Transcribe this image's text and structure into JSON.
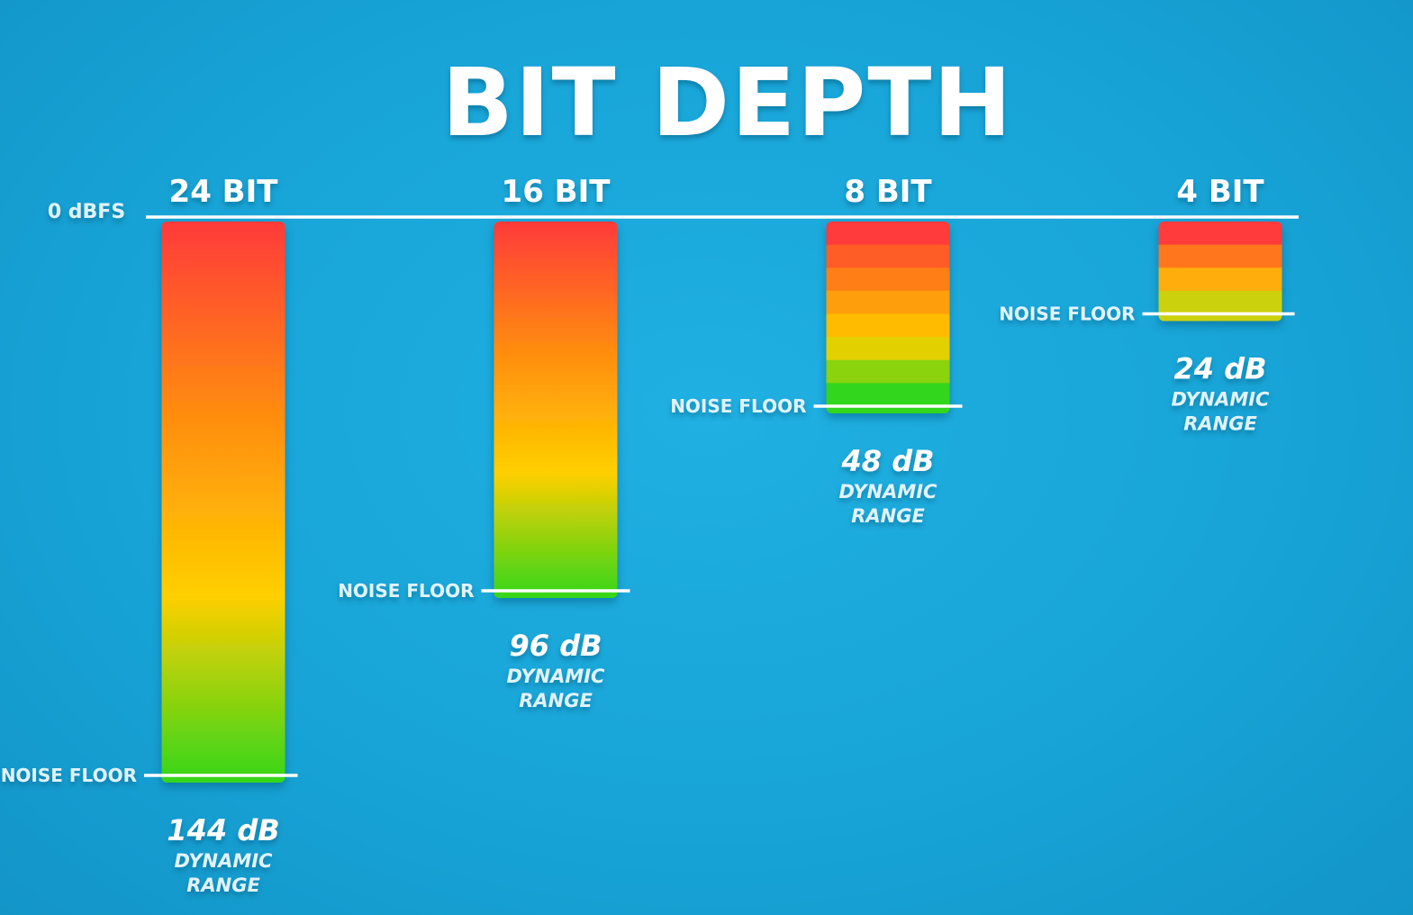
{
  "chart_data": {
    "type": "bar",
    "title": "BIT DEPTH",
    "reference_label": "0 dBFS",
    "noise_floor_label": "NOISE FLOOR",
    "unit": "dB",
    "ylim": [
      0,
      144
    ],
    "categories": [
      "24 BIT",
      "16 BIT",
      "8 BIT",
      "4 BIT"
    ],
    "values": [
      144,
      96,
      48,
      24
    ],
    "value_labels": [
      "144 dB",
      "96 dB",
      "48 dB",
      "24 dB"
    ],
    "value_caption_lines": [
      "DYNAMIC",
      "RANGE"
    ],
    "stepped_levels": [
      null,
      null,
      8,
      4
    ],
    "gradient_colors": [
      "#ff3a3a",
      "#ff8a10",
      "#ffcf00",
      "#33d61a"
    ],
    "colors": {
      "text": "#ffffff",
      "label_text": "#dff3fb"
    }
  }
}
